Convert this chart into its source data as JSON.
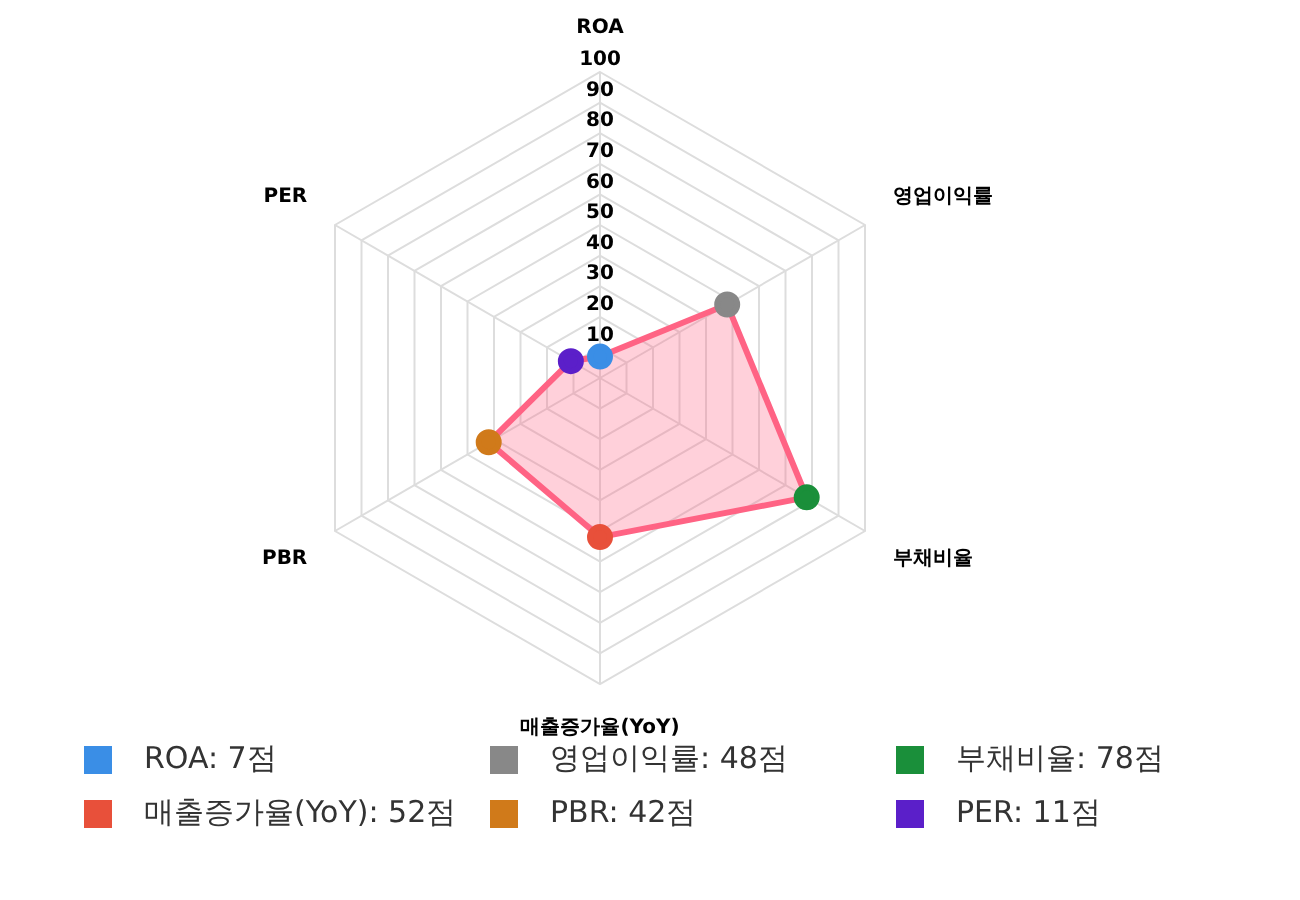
{
  "chart_data": {
    "type": "radar",
    "categories": [
      "ROA",
      "영업이익률",
      "부채비율",
      "매출증가율(YoY)",
      "PBR",
      "PER"
    ],
    "series": [
      {
        "color": "#ff6384",
        "values": [
          7,
          48,
          78,
          52,
          42,
          11
        ],
        "colors": [
          "#3a8ee6",
          "#888888",
          "#1a8f3a",
          "#e8503a",
          "#d07a1a",
          "#5b1fc9"
        ]
      }
    ],
    "annotations": [
      "ROA: 7점",
      "영업이익률: 48점",
      "부채비율: 78점",
      "매출증가율(YoY): 52점",
      "PBR: 42점",
      "PER: 11점"
    ],
    "ylim": [
      0,
      100
    ],
    "yticks": [
      10,
      20,
      30,
      40,
      50,
      60,
      70,
      80,
      90,
      100
    ],
    "grid": true,
    "marker": "circle"
  }
}
